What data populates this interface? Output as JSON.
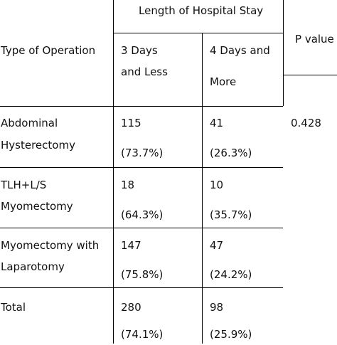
{
  "table": {
    "header": {
      "group_label": "Length of Hospital Stay",
      "row_label": "Type of Operation",
      "col1_line1": "3 Days",
      "col1_line2": "and Less",
      "col2_line1": "4 Days and",
      "col2_line2": "More",
      "p_label": "P value"
    },
    "rows": [
      {
        "name_line1": "Abdominal",
        "name_line2": "Hysterectomy",
        "c1_count": "115",
        "c1_pct": "(73.7%)",
        "c2_count": "41",
        "c2_pct": "(26.3%)",
        "p": "0.428"
      },
      {
        "name_line1": "TLH+L/S",
        "name_line2": "Myomectomy",
        "c1_count": "18",
        "c1_pct": "(64.3%)",
        "c2_count": "10",
        "c2_pct": "(35.7%)",
        "p": ""
      },
      {
        "name_line1": "Myomectomy with",
        "name_line2": "Laparotomy",
        "c1_count": "147",
        "c1_pct": "(75.8%)",
        "c2_count": "47",
        "c2_pct": "(24.2%)",
        "p": ""
      },
      {
        "name_line1": "Total",
        "name_line2": "",
        "c1_count": "280",
        "c1_pct": "(74.1%)",
        "c2_count": "98",
        "c2_pct": "(25.9%)",
        "p": ""
      }
    ]
  }
}
